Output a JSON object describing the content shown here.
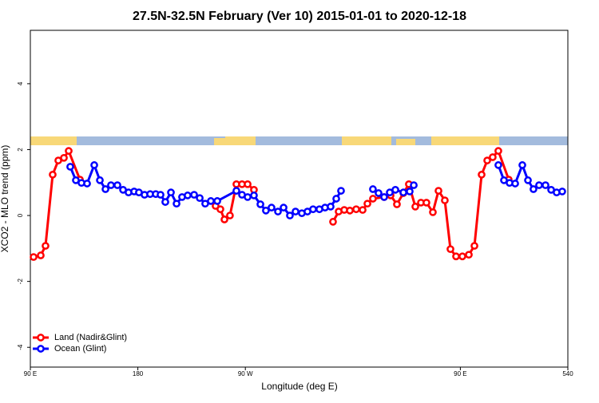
{
  "chart_data": {
    "type": "line",
    "title": "27.5N-32.5N February (Ver 10)   2015-01-01 to 2020-12-18",
    "x_label": "Longitude (deg E)",
    "y_label": "XCO2 - MLO trend (ppm)",
    "xlim": [
      90,
      540
    ],
    "xticks": [
      {
        "value": 90,
        "label": "90 E"
      },
      180,
      {
        "value": 270,
        "label": "90 W"
      },
      {
        "value": 450,
        "label": "90 E"
      },
      540
    ],
    "ylim": [
      -4.6,
      5.62
    ],
    "yticks": [
      -4,
      -2,
      0,
      2,
      4
    ],
    "legend": "bottom-left",
    "series": [
      {
        "name": "Land (Nadir&Glint)",
        "color": "#ff0000",
        "x": [
          92.7,
          98.7,
          102.7,
          108.7,
          113.4,
          118.1,
          122.1,
          131.5,
          null,
          245.1,
          249.1,
          252.5,
          257.1,
          262.5,
          267.2,
          271.9,
          277.2,
          null,
          343.4,
          348.1,
          352.8,
          357.5,
          362.8,
          368.2,
          372.2,
          376.8,
          386.2,
          391.6,
          396.9,
          402.3,
          406.9,
          412.3,
          417.0,
          421.6,
          427.0,
          431.7,
          437.0,
          441.7,
          446.4,
          451.7,
          457.1,
          461.8,
          467.8,
          472.5,
          477.1,
          481.8,
          490.5
        ],
        "values": [
          -1.26,
          -1.21,
          -0.92,
          1.24,
          1.67,
          1.75,
          1.96,
          1.09,
          null,
          0.29,
          0.19,
          -0.12,
          0,
          0.95,
          0.95,
          0.95,
          0.78,
          null,
          -0.19,
          0.12,
          0.17,
          0.15,
          0.19,
          0.17,
          0.36,
          0.51,
          0.56,
          0.61,
          0.34,
          0.68,
          0.95,
          0.27,
          0.39,
          0.39,
          0.1,
          0.75,
          0.46,
          -1.02,
          -1.24,
          -1.24,
          -1.19,
          -0.92,
          1.24,
          1.67,
          1.77,
          1.96,
          1.09
        ]
      },
      {
        "name": "Ocean (Glint)",
        "color": "#0000ff",
        "x": [
          123.4,
          128.1,
          132.8,
          137.5,
          143.5,
          148.2,
          152.9,
          157.5,
          162.9,
          167.6,
          172.2,
          176.9,
          180.9,
          185.6,
          190.3,
          195.0,
          199.0,
          203.0,
          207.7,
          212.4,
          217.0,
          221.7,
          227.1,
          231.8,
          236.4,
          241.1,
          246.5,
          262.5,
          267.2,
          271.9,
          277.2,
          282.6,
          287.2,
          291.9,
          297.3,
          302.0,
          307.3,
          312.0,
          317.3,
          322.0,
          326.7,
          332.0,
          336.7,
          341.4,
          346.1,
          350.1,
          null,
          376.8,
          381.5,
          386.2,
          390.9,
          395.6,
          402.3,
          407.6,
          411.0,
          null,
          481.8,
          486.5,
          491.2,
          495.9,
          501.9,
          506.6,
          511.2,
          515.9,
          521.3,
          526.0,
          530.6,
          535.3
        ],
        "values": [
          1.48,
          1.07,
          0.99,
          0.97,
          1.53,
          1.07,
          0.8,
          0.92,
          0.92,
          0.78,
          0.7,
          0.73,
          0.7,
          0.63,
          0.65,
          0.65,
          0.63,
          0.41,
          0.7,
          0.36,
          0.56,
          0.61,
          0.63,
          0.53,
          0.36,
          0.44,
          0.44,
          0.75,
          0.63,
          0.56,
          0.61,
          0.34,
          0.15,
          0.24,
          0.12,
          0.24,
          0,
          0.12,
          0.07,
          0.12,
          0.19,
          0.19,
          0.24,
          0.27,
          0.51,
          0.75,
          null,
          0.8,
          0.68,
          0.56,
          0.7,
          0.78,
          0.7,
          0.73,
          0.92,
          null,
          1.53,
          1.07,
          0.99,
          0.97,
          1.53,
          1.07,
          0.8,
          0.92,
          0.92,
          0.78,
          0.7,
          0.73
        ]
      }
    ]
  }
}
